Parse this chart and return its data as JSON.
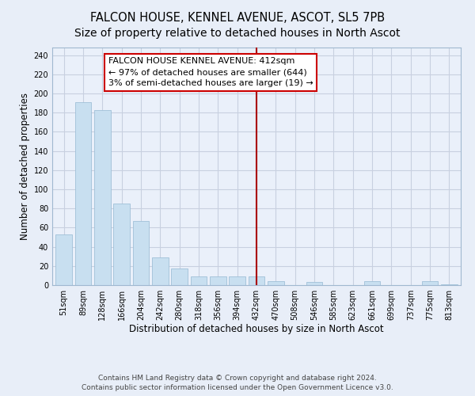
{
  "title": "FALCON HOUSE, KENNEL AVENUE, ASCOT, SL5 7PB",
  "subtitle": "Size of property relative to detached houses in North Ascot",
  "xlabel": "Distribution of detached houses by size in North Ascot",
  "ylabel": "Number of detached properties",
  "bar_labels": [
    "51sqm",
    "89sqm",
    "128sqm",
    "166sqm",
    "204sqm",
    "242sqm",
    "280sqm",
    "318sqm",
    "356sqm",
    "394sqm",
    "432sqm",
    "470sqm",
    "508sqm",
    "546sqm",
    "585sqm",
    "623sqm",
    "661sqm",
    "699sqm",
    "737sqm",
    "775sqm",
    "813sqm"
  ],
  "bar_values": [
    53,
    191,
    183,
    85,
    67,
    29,
    17,
    9,
    9,
    9,
    9,
    4,
    0,
    3,
    0,
    0,
    4,
    0,
    0,
    4,
    1
  ],
  "bar_color": "#c8dff0",
  "bar_edge_color": "#a0c0d8",
  "vline_x": 10.0,
  "vline_color": "#aa0000",
  "annotation_text": "FALCON HOUSE KENNEL AVENUE: 412sqm\n← 97% of detached houses are smaller (644)\n3% of semi-detached houses are larger (19) →",
  "annotation_box_facecolor": "#ffffff",
  "annotation_box_edgecolor": "#cc0000",
  "ylim": [
    0,
    248
  ],
  "yticks": [
    0,
    20,
    40,
    60,
    80,
    100,
    120,
    140,
    160,
    180,
    200,
    220,
    240
  ],
  "footer1": "Contains HM Land Registry data © Crown copyright and database right 2024.",
  "footer2": "Contains public sector information licensed under the Open Government Licence v3.0.",
  "bg_color": "#e8eef8",
  "plot_bg_color": "#eaf0fa",
  "grid_color": "#c8d0e0",
  "title_fontsize": 10.5,
  "axis_label_fontsize": 8.5,
  "tick_fontsize": 7,
  "annotation_fontsize": 8,
  "footer_fontsize": 6.5
}
